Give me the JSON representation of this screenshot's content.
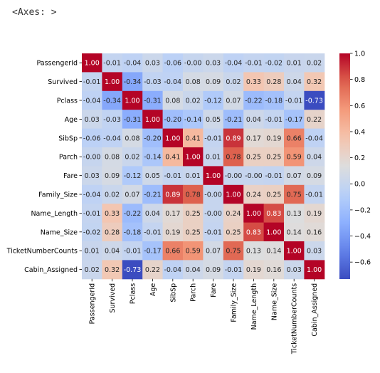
{
  "output_text": "<Axes: >",
  "chart_data": {
    "type": "heatmap",
    "x_labels": [
      "PassengerId",
      "Survived",
      "Pclass",
      "Age",
      "SibSp",
      "Parch",
      "Fare",
      "Family_Size",
      "Name_Length",
      "Name_Size",
      "TicketNumberCounts",
      "Cabin_Assigned"
    ],
    "y_labels": [
      "PassengerId",
      "Survived",
      "Pclass",
      "Age",
      "SibSp",
      "Parch",
      "Fare",
      "Family_Size",
      "Name_Length",
      "Name_Size",
      "TicketNumberCounts",
      "Cabin_Assigned"
    ],
    "values": [
      [
        1.0,
        -0.01,
        -0.04,
        0.03,
        -0.06,
        -0.0,
        0.03,
        -0.04,
        -0.01,
        -0.02,
        0.01,
        0.02
      ],
      [
        -0.01,
        1.0,
        -0.34,
        -0.03,
        -0.04,
        0.08,
        0.09,
        0.02,
        0.33,
        0.28,
        0.04,
        0.32
      ],
      [
        -0.04,
        -0.34,
        1.0,
        -0.31,
        0.08,
        0.02,
        -0.12,
        0.07,
        -0.22,
        -0.18,
        -0.01,
        -0.73
      ],
      [
        0.03,
        -0.03,
        -0.31,
        1.0,
        -0.2,
        -0.14,
        0.05,
        -0.21,
        0.04,
        -0.01,
        -0.17,
        0.22
      ],
      [
        -0.06,
        -0.04,
        0.08,
        -0.2,
        1.0,
        0.41,
        -0.01,
        0.89,
        0.17,
        0.19,
        0.66,
        -0.04
      ],
      [
        -0.0,
        0.08,
        0.02,
        -0.14,
        0.41,
        1.0,
        0.01,
        0.78,
        0.25,
        0.25,
        0.59,
        0.04
      ],
      [
        0.03,
        0.09,
        -0.12,
        0.05,
        -0.01,
        0.01,
        1.0,
        -0.0,
        -0.0,
        -0.01,
        0.07,
        0.09
      ],
      [
        -0.04,
        0.02,
        0.07,
        -0.21,
        0.89,
        0.78,
        -0.0,
        1.0,
        0.24,
        0.25,
        0.75,
        -0.01
      ],
      [
        -0.01,
        0.33,
        -0.22,
        0.04,
        0.17,
        0.25,
        -0.0,
        0.24,
        1.0,
        0.83,
        0.13,
        0.19
      ],
      [
        -0.02,
        0.28,
        -0.18,
        -0.01,
        0.19,
        0.25,
        -0.01,
        0.25,
        0.83,
        1.0,
        0.14,
        0.16
      ],
      [
        0.01,
        0.04,
        -0.01,
        -0.17,
        0.66,
        0.59,
        0.07,
        0.75,
        0.13,
        0.14,
        1.0,
        0.03
      ],
      [
        0.02,
        0.32,
        -0.73,
        0.22,
        -0.04,
        0.04,
        0.09,
        -0.01,
        0.19,
        0.16,
        0.03,
        1.0
      ]
    ],
    "colormap": "coolwarm",
    "vmin": -0.73,
    "vmax": 1.0,
    "annotations": true,
    "colorbar_ticks": [
      "1.0",
      "0.8",
      "0.6",
      "0.4",
      "0.2",
      "0.0",
      "−0.2",
      "−0.4",
      "−0.6"
    ],
    "colorbar_tick_values": [
      1.0,
      0.8,
      0.6,
      0.4,
      0.2,
      0.0,
      -0.2,
      -0.4,
      -0.6
    ]
  }
}
